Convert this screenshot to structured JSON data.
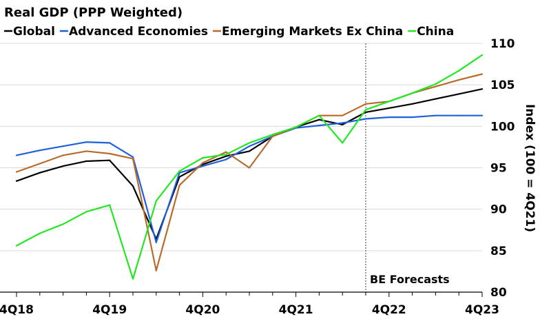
{
  "chart_data": {
    "type": "line",
    "title": "Real GDP (PPP Weighted)",
    "xlabel": "",
    "ylabel": "Index (100 = 4Q21)",
    "ylim": [
      80,
      110
    ],
    "yticks": [
      80,
      85,
      90,
      95,
      100,
      105,
      110
    ],
    "x": [
      "4Q18",
      "1Q19",
      "2Q19",
      "3Q19",
      "4Q19",
      "1Q20",
      "2Q20",
      "3Q20",
      "4Q20",
      "1Q21",
      "2Q21",
      "3Q21",
      "4Q21",
      "1Q22",
      "2Q22",
      "3Q22",
      "4Q22",
      "1Q23",
      "2Q23",
      "3Q23",
      "4Q23"
    ],
    "xtick_labels": [
      "4Q18",
      "4Q19",
      "4Q20",
      "4Q21",
      "4Q22",
      "4Q23"
    ],
    "series": [
      {
        "name": "Global",
        "color": "#000000",
        "values": [
          93.4,
          94.4,
          95.2,
          95.8,
          95.9,
          92.8,
          86.4,
          93.9,
          95.4,
          96.4,
          97.0,
          98.8,
          99.9,
          100.8,
          100.2,
          101.7,
          102.2,
          102.7,
          103.3,
          103.9,
          104.5
        ]
      },
      {
        "name": "Advanced Economies",
        "color": "#1e5fdc",
        "values": [
          96.5,
          97.1,
          97.6,
          98.1,
          98.0,
          96.3,
          86.0,
          94.4,
          95.2,
          96.0,
          97.6,
          98.8,
          99.8,
          100.1,
          100.4,
          100.9,
          101.1,
          101.1,
          101.3,
          101.3,
          101.3
        ]
      },
      {
        "name": "Emerging Markets Ex China",
        "color": "#b86a2a",
        "values": [
          94.5,
          95.5,
          96.5,
          97.0,
          96.7,
          96.1,
          82.6,
          92.9,
          95.6,
          96.9,
          95.0,
          98.8,
          99.9,
          101.3,
          101.3,
          102.7,
          103.0,
          104.0,
          104.8,
          105.6,
          106.3
        ]
      },
      {
        "name": "China",
        "color": "#22e622",
        "values": [
          85.6,
          87.1,
          88.2,
          89.7,
          90.5,
          81.6,
          91.0,
          94.6,
          96.2,
          96.6,
          98.0,
          99.0,
          99.9,
          101.3,
          98.0,
          102.0,
          103.0,
          104.0,
          105.1,
          106.7,
          108.6
        ]
      }
    ],
    "forecast_start": "4Q22",
    "annotation": "BE Forecasts",
    "grid": true,
    "legend": "top-left"
  }
}
